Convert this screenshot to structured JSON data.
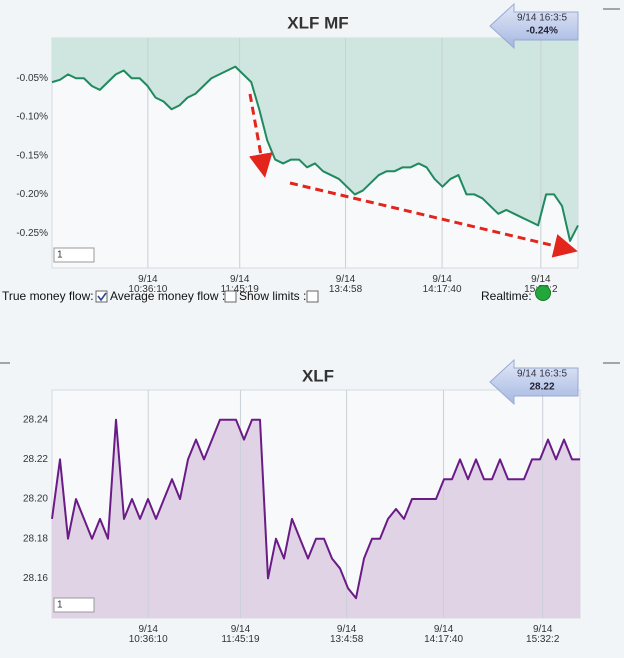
{
  "chart_data": [
    {
      "type": "line",
      "title": "XLF MF",
      "badge_time": "9/14 16:3:5",
      "badge_value": "-0.24%",
      "zoom_input": "1",
      "color": "#1f8a5e",
      "fill_color": "#cfe6e0",
      "fill": "above",
      "grid": "x",
      "xlim": [
        564,
        960
      ],
      "ylim": [
        -0.295,
        0.002
      ],
      "xticks": [
        {
          "value": 636.17,
          "label": [
            "9/14",
            "10:36:10"
          ]
        },
        {
          "value": 705.32,
          "label": [
            "9/14",
            "11:45:19"
          ]
        },
        {
          "value": 784.97,
          "label": [
            "9/14",
            "13:4:58"
          ]
        },
        {
          "value": 857.67,
          "label": [
            "9/14",
            "14:17:40"
          ]
        },
        {
          "value": 932.03,
          "label": [
            "9/14",
            "15:32:2"
          ]
        }
      ],
      "yticks": [
        {
          "value": -0.05,
          "label": "-0.05%"
        },
        {
          "value": -0.1,
          "label": "-0.10%"
        },
        {
          "value": -0.15,
          "label": "-0.15%"
        },
        {
          "value": -0.2,
          "label": "-0.20%"
        },
        {
          "value": -0.25,
          "label": "-0.25%"
        }
      ],
      "x": [
        564,
        570,
        576,
        582,
        588,
        594,
        600,
        606,
        612,
        618,
        624,
        630,
        636,
        642,
        648,
        654,
        660,
        666,
        672,
        678,
        684,
        690,
        696,
        702,
        708,
        714,
        720,
        726,
        732,
        738,
        744,
        750,
        756,
        762,
        768,
        774,
        780,
        786,
        792,
        798,
        804,
        810,
        816,
        822,
        828,
        834,
        840,
        846,
        852,
        858,
        864,
        870,
        876,
        882,
        888,
        894,
        900,
        906,
        912,
        918,
        924,
        930,
        936,
        942,
        948,
        954,
        960
      ],
      "values": [
        -0.055,
        -0.052,
        -0.045,
        -0.05,
        -0.05,
        -0.06,
        -0.065,
        -0.055,
        -0.045,
        -0.04,
        -0.05,
        -0.05,
        -0.06,
        -0.075,
        -0.08,
        -0.09,
        -0.085,
        -0.075,
        -0.07,
        -0.06,
        -0.05,
        -0.045,
        -0.04,
        -0.035,
        -0.045,
        -0.055,
        -0.09,
        -0.13,
        -0.155,
        -0.16,
        -0.155,
        -0.155,
        -0.165,
        -0.16,
        -0.17,
        -0.175,
        -0.18,
        -0.19,
        -0.2,
        -0.195,
        -0.185,
        -0.175,
        -0.17,
        -0.17,
        -0.165,
        -0.165,
        -0.16,
        -0.165,
        -0.18,
        -0.19,
        -0.18,
        -0.175,
        -0.2,
        -0.2,
        -0.205,
        -0.215,
        -0.225,
        -0.22,
        -0.225,
        -0.23,
        -0.235,
        -0.24,
        -0.2,
        -0.2,
        -0.215,
        -0.26,
        -0.24
      ]
    },
    {
      "type": "line",
      "title": "XLF",
      "badge_time": "9/14 16:3:5",
      "badge_value": "28.22",
      "zoom_input": "1",
      "color": "#6a1b86",
      "fill_color": "#e1d3e6",
      "fill": "below",
      "grid": "x",
      "xlim": [
        564,
        960
      ],
      "ylim": [
        28.14,
        28.255
      ],
      "xticks": [
        {
          "value": 636.17,
          "label": [
            "9/14",
            "10:36:10"
          ]
        },
        {
          "value": 705.32,
          "label": [
            "9/14",
            "11:45:19"
          ]
        },
        {
          "value": 784.97,
          "label": [
            "9/14",
            "13:4:58"
          ]
        },
        {
          "value": 857.67,
          "label": [
            "9/14",
            "14:17:40"
          ]
        },
        {
          "value": 932.03,
          "label": [
            "9/14",
            "15:32:2"
          ]
        }
      ],
      "yticks": [
        28.24,
        28.22,
        {
          "value": 28.2,
          "label": "28.20"
        },
        28.18,
        28.16
      ],
      "x": [
        564,
        570,
        576,
        582,
        588,
        594,
        600,
        606,
        612,
        618,
        624,
        630,
        636,
        642,
        648,
        654,
        660,
        666,
        672,
        678,
        684,
        690,
        696,
        702,
        708,
        714,
        720,
        726,
        732,
        738,
        744,
        750,
        756,
        762,
        768,
        774,
        780,
        786,
        792,
        798,
        804,
        810,
        816,
        822,
        828,
        834,
        840,
        846,
        852,
        858,
        864,
        870,
        876,
        882,
        888,
        894,
        900,
        906,
        912,
        918,
        924,
        930,
        936,
        942,
        948,
        954,
        960
      ],
      "values": [
        28.19,
        28.22,
        28.18,
        28.2,
        28.19,
        28.18,
        28.19,
        28.18,
        28.24,
        28.19,
        28.2,
        28.19,
        28.2,
        28.19,
        28.2,
        28.21,
        28.2,
        28.22,
        28.23,
        28.22,
        28.23,
        28.24,
        28.24,
        28.24,
        28.23,
        28.24,
        28.24,
        28.16,
        28.18,
        28.17,
        28.19,
        28.18,
        28.17,
        28.18,
        28.18,
        28.17,
        28.165,
        28.155,
        28.15,
        28.17,
        28.18,
        28.18,
        28.19,
        28.195,
        28.19,
        28.2,
        28.2,
        28.2,
        28.2,
        28.21,
        28.21,
        28.22,
        28.21,
        28.22,
        28.21,
        28.21,
        28.22,
        28.21,
        28.21,
        28.21,
        28.22,
        28.22,
        28.23,
        28.22,
        28.23,
        28.22,
        28.22
      ]
    }
  ],
  "controls": {
    "true_money_flow": "True money flow:",
    "average_money_flow": "Average money flow :",
    "show_limits": "Show limits :",
    "realtime": "Realtime:"
  }
}
